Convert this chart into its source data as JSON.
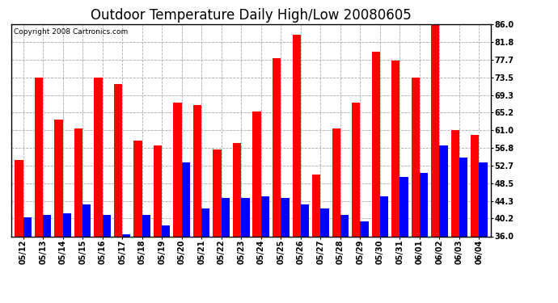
{
  "title": "Outdoor Temperature Daily High/Low 20080605",
  "copyright": "Copyright 2008 Cartronics.com",
  "categories": [
    "05/12",
    "05/13",
    "05/14",
    "05/15",
    "05/16",
    "05/17",
    "05/18",
    "05/19",
    "05/20",
    "05/21",
    "05/22",
    "05/23",
    "05/24",
    "05/25",
    "05/26",
    "05/27",
    "05/28",
    "05/29",
    "05/30",
    "05/31",
    "06/01",
    "06/02",
    "06/03",
    "06/04"
  ],
  "highs": [
    54.0,
    73.5,
    63.5,
    61.5,
    73.5,
    72.0,
    58.5,
    57.5,
    67.5,
    67.0,
    56.5,
    58.0,
    65.5,
    78.0,
    83.5,
    50.5,
    61.5,
    67.5,
    79.5,
    77.5,
    73.5,
    86.0,
    61.0,
    60.0
  ],
  "lows": [
    40.5,
    41.0,
    41.5,
    43.5,
    41.0,
    36.5,
    41.0,
    38.5,
    53.5,
    42.5,
    45.0,
    45.0,
    45.5,
    45.0,
    43.5,
    42.5,
    41.0,
    39.5,
    45.5,
    50.0,
    51.0,
    57.5,
    54.5,
    53.5
  ],
  "high_color": "#ff0000",
  "low_color": "#0000ff",
  "background_color": "#ffffff",
  "grid_color": "#aaaaaa",
  "yticks": [
    36.0,
    40.2,
    44.3,
    48.5,
    52.7,
    56.8,
    61.0,
    65.2,
    69.3,
    73.5,
    77.7,
    81.8,
    86.0
  ],
  "ylim": [
    36.0,
    86.0
  ],
  "ybase": 36.0,
  "bar_width": 0.42,
  "title_fontsize": 12,
  "tick_fontsize": 7,
  "copyright_fontsize": 6.5
}
